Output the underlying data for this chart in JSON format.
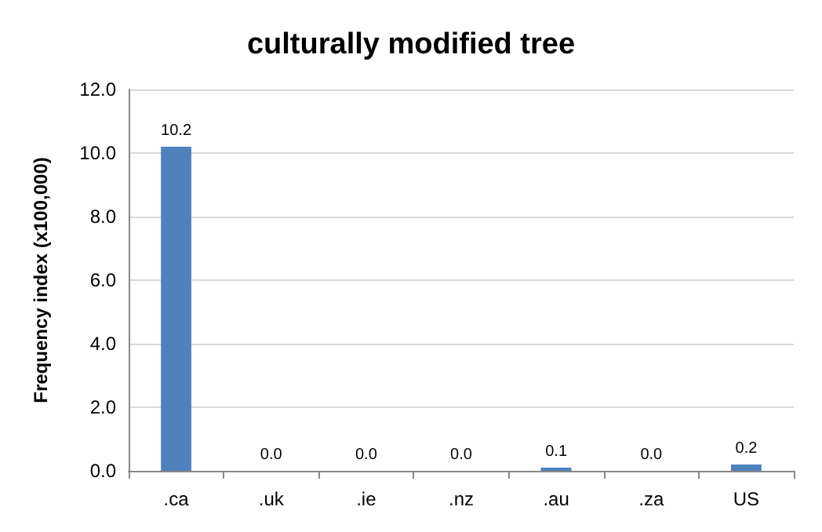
{
  "chart_data": {
    "type": "bar",
    "title": "culturally modified tree",
    "ylabel": "Frequency index (x100,000)",
    "categories": [
      ".ca",
      ".uk",
      ".ie",
      ".nz",
      ".au",
      ".za",
      "US"
    ],
    "values": [
      10.2,
      0,
      0,
      0,
      0.1,
      0,
      0.2
    ],
    "value_labels": [
      "10.2",
      "0.0",
      "0.0",
      "0.0",
      "0.1",
      "0.0",
      "0.2"
    ],
    "color": "#4f81bd",
    "ylim": [
      0,
      12
    ],
    "yticks": [
      {
        "value": 0,
        "label": "0.0"
      },
      {
        "value": 2,
        "label": "2.0"
      },
      {
        "value": 4,
        "label": "4.0"
      },
      {
        "value": 6,
        "label": "6.0"
      },
      {
        "value": 8,
        "label": "8.0"
      },
      {
        "value": 10,
        "label": "10.0"
      },
      {
        "value": 12,
        "label": "12.0"
      }
    ],
    "grid": true
  }
}
